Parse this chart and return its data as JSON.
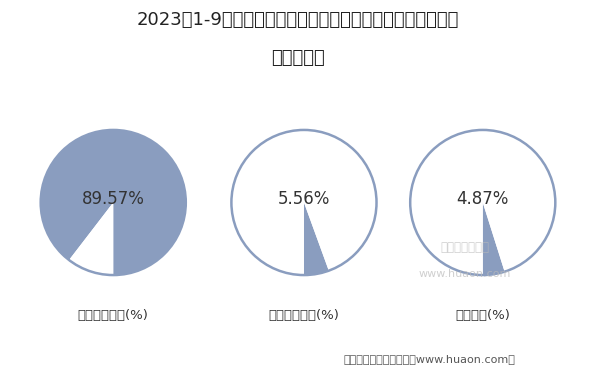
{
  "title": "2023年1-9月安徽国有及国有控股建筑业工程、安装工程及其\n他产值结构",
  "title_line1": "2023年1-9月安徽国有及国有控股建筑业工程、安装工程及其",
  "title_line2": "他产值结构",
  "charts": [
    {
      "label": "建筑工程产值(%)",
      "value": 89.57,
      "pct_text": "89.57%"
    },
    {
      "label": "安装工程产值(%)",
      "value": 5.56,
      "pct_text": "5.56%"
    },
    {
      "label": "其他产值(%)",
      "value": 4.87,
      "pct_text": "4.87%"
    }
  ],
  "fill_color": "#8A9DBF",
  "edge_color": "#8A9DBF",
  "bg_color": "#ffffff",
  "title_fontsize": 13,
  "label_fontsize": 9.5,
  "pct_fontsize": 12,
  "footer_text": "制图：华经产业研究院（www.huaon.com）",
  "footer_fontsize": 8,
  "watermark_line1": "华经产业研究院",
  "watermark_line2": "www.huaon.com"
}
